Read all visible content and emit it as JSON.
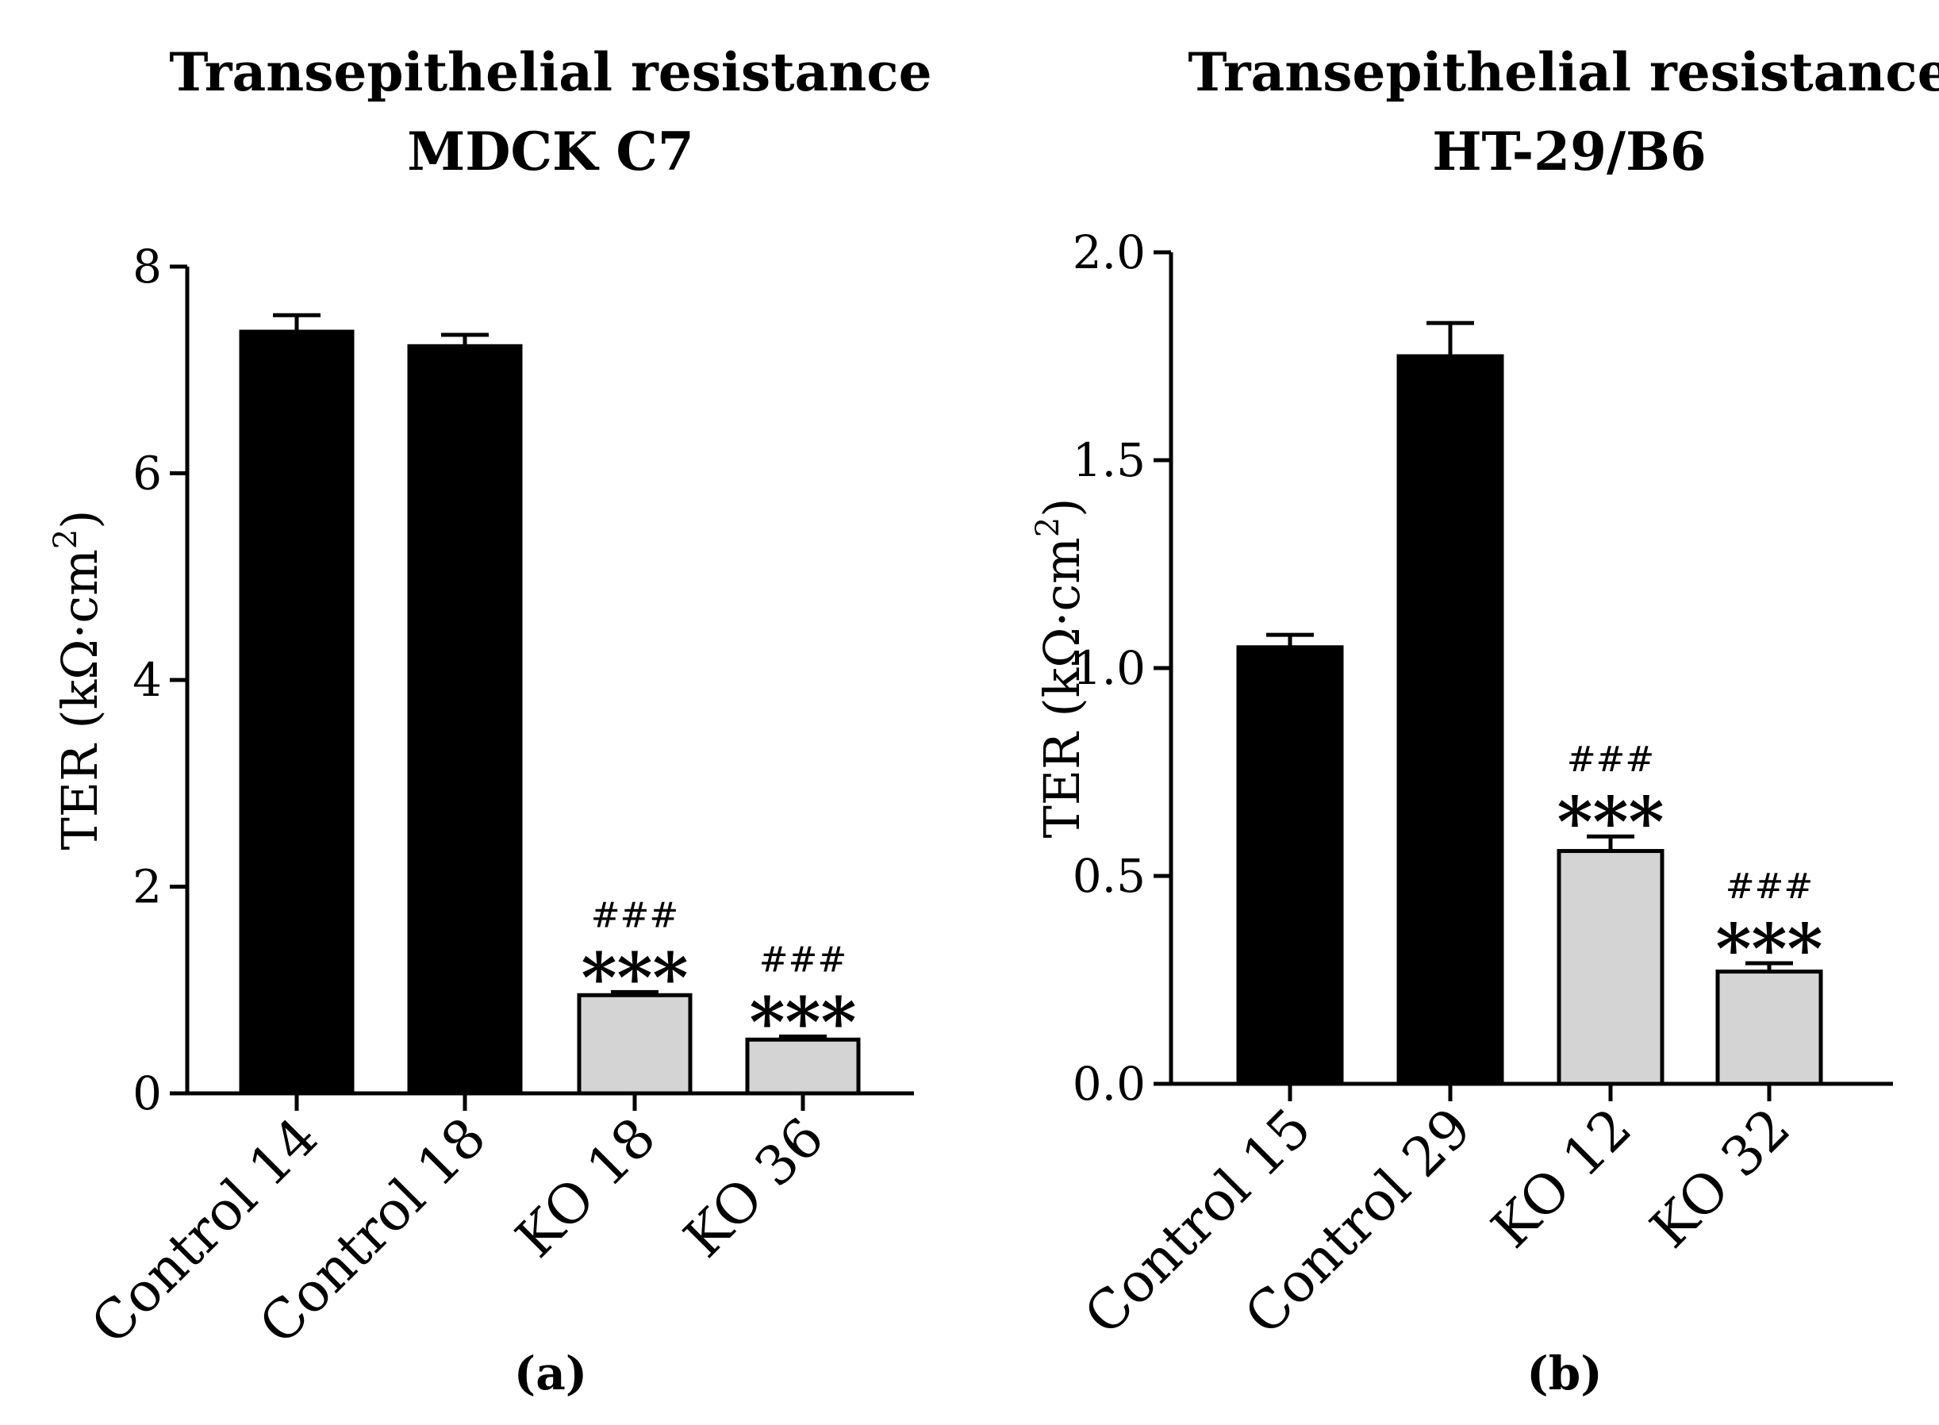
{
  "chart_data": [
    {
      "type": "bar",
      "panel_label": "(a)",
      "title_line1": "Transepithelial resistance",
      "title_line2": "MDCK C7",
      "ylabel_main": "TER (kΩ·cm",
      "ylabel_sup": "2",
      "ylabel_close": ")",
      "ylim": [
        0,
        8
      ],
      "yticks": [
        0,
        2,
        4,
        6,
        8
      ],
      "ytick_labels": [
        "0",
        "2",
        "4",
        "6",
        "8"
      ],
      "categories": [
        "Control 14",
        "Control 18",
        "KO 18",
        "KO 36"
      ],
      "values": [
        7.37,
        7.23,
        0.95,
        0.52
      ],
      "errors": [
        0.16,
        0.11,
        0.03,
        0.03
      ],
      "fill": [
        "#000000",
        "#000000",
        "#d4d4d4",
        "#d4d4d4"
      ],
      "stars": [
        "",
        "",
        "***",
        "***"
      ],
      "hashes": [
        "",
        "",
        "###",
        "###"
      ]
    },
    {
      "type": "bar",
      "panel_label": "(b)",
      "title_line1": "Transepithelial resistance",
      "title_line2": "HT-29/B6",
      "ylabel_main": "TER (kΩ·cm",
      "ylabel_sup": "2",
      "ylabel_close": ")",
      "ylim": [
        0,
        2.0
      ],
      "yticks": [
        0,
        0.5,
        1.0,
        1.5,
        2.0
      ],
      "ytick_labels": [
        "0.0",
        "0.5",
        "1.0",
        "1.5",
        "2.0"
      ],
      "categories": [
        "Control 15",
        "Control 29",
        "KO 12",
        "KO 32"
      ],
      "values": [
        1.05,
        1.75,
        0.56,
        0.27
      ],
      "errors": [
        0.03,
        0.08,
        0.035,
        0.02
      ],
      "fill": [
        "#000000",
        "#000000",
        "#d4d4d4",
        "#d4d4d4"
      ],
      "stars": [
        "",
        "",
        "***",
        "***"
      ],
      "hashes": [
        "",
        "",
        "###",
        "###"
      ]
    }
  ]
}
